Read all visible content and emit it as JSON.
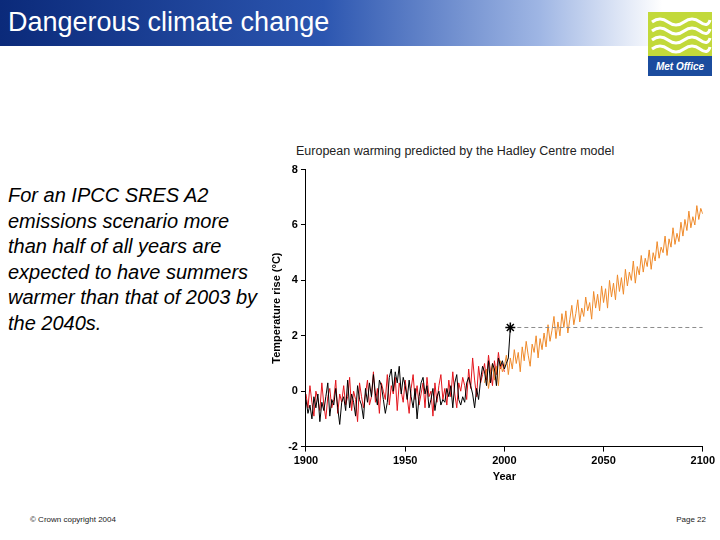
{
  "slide": {
    "title": "Dangerous climate change",
    "logo_text": "Met Office",
    "text": "For an IPCC SRES A2 emissions scenario more than half of all years are expected to have summers warmer than that of 2003 by the 2040s.",
    "footer": "© Crown copyright 2004",
    "page": "Page 22"
  },
  "chart_data": {
    "type": "line",
    "title": "European warming predicted by the Hadley Centre model",
    "x_label": "Year",
    "y_label": "Temperature rise (°C)",
    "xlim": [
      1900,
      2100
    ],
    "xticks": [
      1900,
      1950,
      2000,
      2050,
      2100
    ],
    "ylim": [
      -2,
      8
    ],
    "yticks": [
      -2,
      0,
      2,
      4,
      6,
      8
    ],
    "grid": false,
    "x": [
      1900,
      1901,
      1902,
      1903,
      1904,
      1905,
      1906,
      1907,
      1908,
      1909,
      1910,
      1911,
      1912,
      1913,
      1914,
      1915,
      1916,
      1917,
      1918,
      1919,
      1920,
      1921,
      1922,
      1923,
      1924,
      1925,
      1926,
      1927,
      1928,
      1929,
      1930,
      1931,
      1932,
      1933,
      1934,
      1935,
      1936,
      1937,
      1938,
      1939,
      1940,
      1941,
      1942,
      1943,
      1944,
      1945,
      1946,
      1947,
      1948,
      1949,
      1950,
      1951,
      1952,
      1953,
      1954,
      1955,
      1956,
      1957,
      1958,
      1959,
      1960,
      1961,
      1962,
      1963,
      1964,
      1965,
      1966,
      1967,
      1968,
      1969,
      1970,
      1971,
      1972,
      1973,
      1974,
      1975,
      1976,
      1977,
      1978,
      1979,
      1980,
      1981,
      1982,
      1983,
      1984,
      1985,
      1986,
      1987,
      1988,
      1989,
      1990,
      1991,
      1992,
      1993,
      1994,
      1995,
      1996,
      1997,
      1998,
      1999,
      2000,
      2001,
      2002,
      2003,
      2004,
      2005,
      2006,
      2007,
      2008,
      2009,
      2010,
      2011,
      2012,
      2013,
      2014,
      2015,
      2016,
      2017,
      2018,
      2019,
      2020,
      2021,
      2022,
      2023,
      2024,
      2025,
      2026,
      2027,
      2028,
      2029,
      2030,
      2031,
      2032,
      2033,
      2034,
      2035,
      2036,
      2037,
      2038,
      2039,
      2040,
      2041,
      2042,
      2043,
      2044,
      2045,
      2046,
      2047,
      2048,
      2049,
      2050,
      2051,
      2052,
      2053,
      2054,
      2055,
      2056,
      2057,
      2058,
      2059,
      2060,
      2061,
      2062,
      2063,
      2064,
      2065,
      2066,
      2067,
      2068,
      2069,
      2070,
      2071,
      2072,
      2073,
      2074,
      2075,
      2076,
      2077,
      2078,
      2079,
      2080,
      2081,
      2082,
      2083,
      2084,
      2085,
      2086,
      2087,
      2088,
      2089,
      2090,
      2091,
      2092,
      2093,
      2094,
      2095,
      2096,
      2097,
      2098,
      2099,
      2100
    ],
    "series": [
      {
        "color": "#e3161d",
        "line_style": "solid",
        "values": [
          -0.1,
          -0.6,
          0.2,
          -0.4,
          -0.9,
          0.0,
          -0.3,
          -0.7,
          0.3,
          -0.5,
          -1.0,
          -0.2,
          0.1,
          -0.6,
          -0.3,
          0.4,
          -0.8,
          -0.1,
          -0.4,
          0.2,
          -0.5,
          -0.2,
          0.5,
          -0.7,
          0.0,
          -0.3,
          -1.1,
          0.3,
          -0.2,
          -0.6,
          -0.1,
          0.4,
          -0.5,
          -0.2,
          0.7,
          -0.4,
          0.1,
          -0.8,
          0.3,
          0.0,
          -0.3,
          0.6,
          -0.5,
          0.2,
          -0.1,
          0.5,
          -0.7,
          0.3,
          0.0,
          -0.4,
          0.4,
          -0.2,
          -0.8,
          0.1,
          0.6,
          -0.3,
          0.2,
          -0.5,
          -0.1,
          0.3,
          -0.6,
          0.5,
          -0.2,
          0.0,
          -0.9,
          0.3,
          -0.4,
          0.2,
          0.6,
          -0.3,
          0.1,
          -0.5,
          0.4,
          -0.2,
          0.7,
          -0.1,
          -0.6,
          0.3,
          0.0,
          0.5,
          0.2,
          -0.3,
          0.8,
          0.1,
          1.2,
          0.4,
          -0.2,
          0.9,
          0.3,
          0.6,
          1.0,
          0.4,
          1.3,
          0.7,
          0.2,
          1.1,
          0.6,
          1.4,
          0.8,
          1.0,
          0.7,
          null,
          null,
          null,
          null,
          null,
          null,
          null,
          null,
          null,
          null,
          null,
          null,
          null,
          null,
          null,
          null,
          null,
          null,
          null,
          null,
          null,
          null,
          null,
          null,
          null,
          null,
          null,
          null,
          null,
          null,
          null,
          null,
          null,
          null,
          null,
          null,
          null,
          null,
          null,
          null,
          null,
          null,
          null,
          null,
          null,
          null,
          null,
          null,
          null,
          null,
          null,
          null,
          null,
          null,
          null,
          null,
          null,
          null,
          null,
          null,
          null,
          null,
          null,
          null,
          null,
          null,
          null,
          null,
          null,
          null,
          null,
          null,
          null,
          null,
          null,
          null,
          null,
          null,
          null,
          null,
          null,
          null,
          null,
          null,
          null,
          null,
          null,
          null,
          null,
          null,
          null,
          null,
          null,
          null,
          null,
          null,
          null,
          null,
          null,
          null
        ]
      },
      {
        "color": "#ef8a2a",
        "line_style": "solid",
        "values": [
          null,
          null,
          null,
          null,
          null,
          null,
          null,
          null,
          null,
          null,
          null,
          null,
          null,
          null,
          null,
          null,
          null,
          null,
          null,
          null,
          null,
          null,
          null,
          null,
          null,
          null,
          null,
          null,
          null,
          null,
          null,
          null,
          null,
          null,
          null,
          null,
          null,
          null,
          null,
          null,
          null,
          null,
          null,
          null,
          null,
          null,
          null,
          null,
          null,
          null,
          null,
          null,
          null,
          null,
          null,
          null,
          null,
          null,
          null,
          null,
          null,
          null,
          null,
          null,
          null,
          null,
          null,
          null,
          null,
          null,
          null,
          null,
          null,
          null,
          null,
          null,
          null,
          null,
          null,
          null,
          null,
          null,
          null,
          null,
          null,
          null,
          null,
          null,
          null,
          null,
          0.3,
          0.8,
          0.1,
          0.6,
          1.0,
          0.4,
          0.9,
          0.2,
          1.1,
          0.7,
          0.9,
          1.3,
          0.6,
          1.2,
          0.8,
          1.5,
          1.0,
          1.4,
          0.7,
          1.6,
          1.1,
          1.8,
          1.3,
          0.9,
          1.7,
          1.4,
          2.0,
          1.2,
          1.9,
          1.5,
          2.1,
          1.6,
          2.4,
          1.8,
          2.2,
          2.7,
          1.9,
          2.5,
          2.0,
          2.8,
          2.3,
          2.9,
          2.1,
          2.6,
          3.1,
          2.4,
          2.8,
          3.3,
          2.5,
          3.0,
          2.7,
          3.4,
          2.9,
          3.2,
          2.6,
          3.6,
          3.0,
          3.5,
          2.9,
          3.8,
          3.2,
          3.7,
          3.0,
          4.0,
          3.4,
          3.9,
          3.3,
          4.2,
          3.6,
          4.1,
          3.5,
          4.4,
          3.8,
          4.3,
          4.0,
          4.7,
          3.9,
          4.5,
          4.2,
          4.9,
          4.3,
          4.8,
          4.5,
          5.1,
          4.4,
          5.0,
          4.7,
          5.4,
          4.8,
          5.2,
          5.0,
          5.6,
          4.9,
          5.5,
          5.2,
          5.9,
          5.3,
          5.7,
          5.4,
          6.1,
          5.6,
          6.2,
          5.8,
          6.5,
          5.9,
          6.3,
          6.0,
          6.7,
          6.2,
          6.6,
          6.4
        ]
      },
      {
        "color": "#000000",
        "line_style": "solid",
        "values": [
          -0.3,
          -0.8,
          -0.5,
          -1.0,
          -0.2,
          -0.6,
          -0.1,
          -1.1,
          -0.4,
          -0.7,
          -0.2,
          0.3,
          -0.9,
          -0.3,
          -0.5,
          0.1,
          -0.6,
          -1.2,
          -0.4,
          -0.2,
          -0.7,
          0.4,
          -0.6,
          -0.1,
          -0.4,
          -0.9,
          0.2,
          -0.3,
          -0.5,
          -1.0,
          0.1,
          -0.4,
          0.3,
          -0.2,
          0.6,
          -0.1,
          -0.5,
          0.4,
          0.2,
          -0.3,
          -0.8,
          -0.4,
          0.5,
          0.8,
          0.0,
          0.7,
          0.3,
          0.9,
          -0.1,
          0.5,
          0.2,
          -0.3,
          0.4,
          -0.2,
          -0.6,
          0.1,
          -1.0,
          -0.2,
          0.3,
          0.5,
          -0.1,
          0.2,
          -0.6,
          -0.3,
          0.1,
          -0.7,
          -0.2,
          0.0,
          -0.5,
          -0.3,
          -0.4,
          0.1,
          -0.2,
          0.2,
          -0.6,
          0.3,
          0.6,
          -0.3,
          -0.5,
          -0.2,
          -0.4,
          0.3,
          0.5,
          0.2,
          -0.1,
          -0.6,
          0.1,
          -0.3,
          0.4,
          0.9,
          0.7,
          0.2,
          1.1,
          0.3,
          1.0,
          0.8,
          0.2,
          1.2,
          0.9,
          1.1,
          0.8,
          1.0,
          1.2,
          2.3,
          null,
          null,
          null,
          null,
          null,
          null,
          null,
          null,
          null,
          null,
          null,
          null,
          null,
          null,
          null,
          null,
          null,
          null,
          null,
          null,
          null,
          null,
          null,
          null,
          null,
          null,
          null,
          null,
          null,
          null,
          null,
          null,
          null,
          null,
          null,
          null,
          null,
          null,
          null,
          null,
          null,
          null,
          null,
          null,
          null,
          null,
          null,
          null,
          null,
          null,
          null,
          null,
          null,
          null,
          null,
          null,
          null,
          null,
          null,
          null,
          null,
          null,
          null,
          null,
          null,
          null,
          null,
          null,
          null,
          null,
          null,
          null,
          null,
          null,
          null,
          null,
          null,
          null,
          null,
          null,
          null,
          null,
          null,
          null,
          null,
          null,
          null,
          null,
          null,
          null,
          null,
          null,
          null,
          null,
          null,
          null,
          null
        ]
      }
    ],
    "reference_line": {
      "x": [
        2003,
        2100
      ],
      "y": 2.3,
      "color": "#8c8c8c",
      "line_style": "dashed"
    },
    "highlight": {
      "x": 2003,
      "y": 2.3,
      "color": "#000000",
      "marker": "star"
    }
  }
}
